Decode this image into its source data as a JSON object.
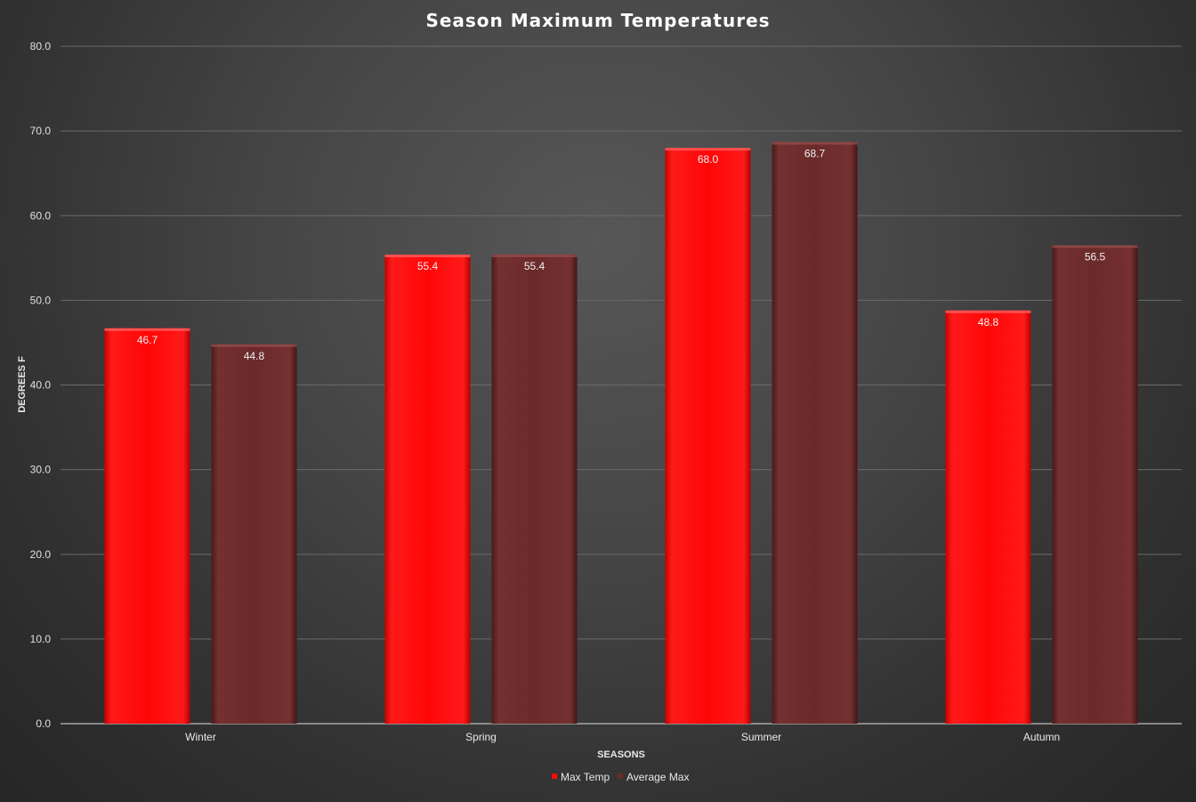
{
  "chart_data": {
    "type": "bar",
    "title": "Season Maximum Temperatures",
    "xlabel": "SEASONS",
    "ylabel": "DEGREES F",
    "categories": [
      "Winter",
      "Spring",
      "Summer",
      "Autumn"
    ],
    "series": [
      {
        "name": "Max Temp",
        "values": [
          46.7,
          55.4,
          68.0,
          48.8
        ],
        "color": "#ff0a0a"
      },
      {
        "name": "Average Max",
        "values": [
          44.8,
          55.4,
          68.7,
          56.5
        ],
        "color": "#6b2a2a"
      }
    ],
    "ylim": [
      0,
      80
    ],
    "yticks": [
      "0.0",
      "10.0",
      "20.0",
      "30.0",
      "40.0",
      "50.0",
      "60.0",
      "70.0",
      "80.0"
    ],
    "grid": true,
    "legend": "bottom",
    "value_format": "0.0"
  }
}
